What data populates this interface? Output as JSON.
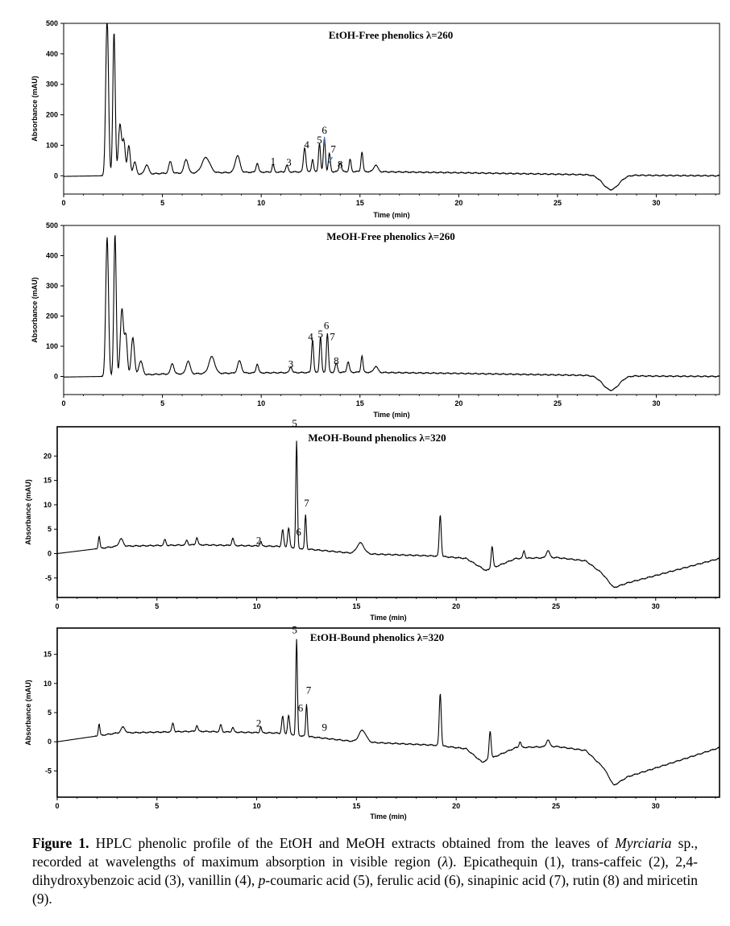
{
  "chart_data": [
    {
      "type": "line",
      "title": "EtOH-Free phenolics λ=260",
      "xlabel": "Time (min)",
      "ylabel": "Absorbance (mAU)",
      "xlim": [
        0,
        33.2
      ],
      "ylim": [
        -60,
        500
      ],
      "xticks": [
        0,
        5,
        10,
        15,
        20,
        25,
        30
      ],
      "yticks": [
        0,
        100,
        200,
        300,
        400,
        500
      ],
      "baseline": {
        "x": [
          0,
          2,
          5,
          10,
          15,
          20,
          26,
          30,
          33.2
        ],
        "y": [
          -2,
          0,
          8,
          12,
          14,
          10,
          4,
          1,
          0
        ]
      },
      "peaks": [
        {
          "x": 2.2,
          "y": 520,
          "w": 0.07
        },
        {
          "x": 2.55,
          "y": 470,
          "w": 0.06
        },
        {
          "x": 2.85,
          "y": 165,
          "w": 0.08
        },
        {
          "x": 3.05,
          "y": 110,
          "w": 0.07
        },
        {
          "x": 3.3,
          "y": 95,
          "w": 0.07
        },
        {
          "x": 3.6,
          "y": 40,
          "w": 0.08
        },
        {
          "x": 4.2,
          "y": 30,
          "w": 0.1
        },
        {
          "x": 5.4,
          "y": 38,
          "w": 0.08
        },
        {
          "x": 6.2,
          "y": 45,
          "w": 0.1
        },
        {
          "x": 7.2,
          "y": 50,
          "w": 0.2
        },
        {
          "x": 8.8,
          "y": 55,
          "w": 0.12
        },
        {
          "x": 9.8,
          "y": 30,
          "w": 0.06
        },
        {
          "x": 10.6,
          "y": 25,
          "w": 0.05
        },
        {
          "x": 11.3,
          "y": 22,
          "w": 0.06
        },
        {
          "x": 12.2,
          "y": 80,
          "w": 0.06
        },
        {
          "x": 12.6,
          "y": 42,
          "w": 0.05
        },
        {
          "x": 12.95,
          "y": 95,
          "w": 0.05
        },
        {
          "x": 13.2,
          "y": 110,
          "w": 0.05
        },
        {
          "x": 13.45,
          "y": 60,
          "w": 0.05
        },
        {
          "x": 14.0,
          "y": 30,
          "w": 0.06
        },
        {
          "x": 14.5,
          "y": 40,
          "w": 0.05
        },
        {
          "x": 15.1,
          "y": 65,
          "w": 0.05
        },
        {
          "x": 15.8,
          "y": 22,
          "w": 0.1
        },
        {
          "x": 27.7,
          "y": -48,
          "w": 0.4
        }
      ],
      "peak_labels": [
        {
          "label": "1",
          "x": 10.6,
          "y": 28
        },
        {
          "label": "3",
          "x": 11.4,
          "y": 25
        },
        {
          "label": "4",
          "x": 12.3,
          "y": 82
        },
        {
          "label": "5",
          "x": 12.95,
          "y": 98
        },
        {
          "label": "6",
          "x": 13.2,
          "y": 130
        },
        {
          "label": "7",
          "x": 13.65,
          "y": 68
        },
        {
          "label": "8",
          "x": 14.0,
          "y": 18
        }
      ]
    },
    {
      "type": "line",
      "title": "MeOH-Free phenolics λ=260",
      "xlabel": "Time (min)",
      "ylabel": "Absorbance (mAU)",
      "xlim": [
        0,
        33.2
      ],
      "ylim": [
        -60,
        500
      ],
      "xticks": [
        0,
        5,
        10,
        15,
        20,
        25,
        30
      ],
      "yticks": [
        0,
        100,
        200,
        300,
        400,
        500
      ],
      "baseline": {
        "x": [
          0,
          2,
          5,
          10,
          15,
          20,
          26,
          30,
          33.2
        ],
        "y": [
          -2,
          0,
          8,
          12,
          14,
          10,
          4,
          1,
          0
        ]
      },
      "peaks": [
        {
          "x": 2.2,
          "y": 460,
          "w": 0.07
        },
        {
          "x": 2.6,
          "y": 470,
          "w": 0.06
        },
        {
          "x": 2.95,
          "y": 220,
          "w": 0.08
        },
        {
          "x": 3.15,
          "y": 130,
          "w": 0.07
        },
        {
          "x": 3.5,
          "y": 125,
          "w": 0.08
        },
        {
          "x": 3.9,
          "y": 45,
          "w": 0.1
        },
        {
          "x": 5.5,
          "y": 35,
          "w": 0.08
        },
        {
          "x": 6.3,
          "y": 42,
          "w": 0.1
        },
        {
          "x": 7.5,
          "y": 55,
          "w": 0.15
        },
        {
          "x": 8.9,
          "y": 40,
          "w": 0.1
        },
        {
          "x": 9.8,
          "y": 30,
          "w": 0.06
        },
        {
          "x": 11.5,
          "y": 20,
          "w": 0.06
        },
        {
          "x": 12.6,
          "y": 110,
          "w": 0.05
        },
        {
          "x": 13.0,
          "y": 120,
          "w": 0.05
        },
        {
          "x": 13.35,
          "y": 130,
          "w": 0.05
        },
        {
          "x": 13.8,
          "y": 30,
          "w": 0.06
        },
        {
          "x": 14.4,
          "y": 35,
          "w": 0.06
        },
        {
          "x": 15.1,
          "y": 55,
          "w": 0.05
        },
        {
          "x": 15.8,
          "y": 20,
          "w": 0.1
        },
        {
          "x": 27.7,
          "y": -48,
          "w": 0.4
        }
      ],
      "peak_labels": [
        {
          "label": "3",
          "x": 11.5,
          "y": 22
        },
        {
          "label": "4",
          "x": 12.5,
          "y": 112
        },
        {
          "label": "5",
          "x": 13.0,
          "y": 122
        },
        {
          "label": "6",
          "x": 13.3,
          "y": 150
        },
        {
          "label": "7",
          "x": 13.6,
          "y": 112
        },
        {
          "label": "8",
          "x": 13.8,
          "y": 32
        }
      ]
    },
    {
      "type": "line",
      "title": "MeOH-Bound phenolics λ=320",
      "xlabel": "Time (min)",
      "ylabel": "Absorbance (mAU)",
      "xlim": [
        0,
        33.2
      ],
      "ylim": [
        -9,
        26
      ],
      "xticks": [
        0,
        5,
        10,
        15,
        20,
        25,
        30
      ],
      "yticks": [
        -5,
        0,
        5,
        10,
        15,
        20
      ],
      "baseline": {
        "x": [
          0,
          3,
          7,
          11,
          15,
          19,
          20.5,
          21.5,
          23,
          25,
          26.5,
          27.3,
          27.9,
          28.6,
          30,
          33.2
        ],
        "y": [
          0,
          1.5,
          1.8,
          1.5,
          0,
          -0.5,
          -1,
          -3.5,
          -1,
          -0.8,
          -1.5,
          -4,
          -7,
          -6,
          -4.5,
          -1
        ]
      },
      "peaks": [
        {
          "x": 2.1,
          "y": 2.5,
          "w": 0.04
        },
        {
          "x": 3.2,
          "y": 1.5,
          "w": 0.1
        },
        {
          "x": 5.4,
          "y": 1.2,
          "w": 0.05
        },
        {
          "x": 6.5,
          "y": 1.0,
          "w": 0.05
        },
        {
          "x": 7.0,
          "y": 1.5,
          "w": 0.05
        },
        {
          "x": 8.8,
          "y": 1.5,
          "w": 0.05
        },
        {
          "x": 10.2,
          "y": 1.0,
          "w": 0.04
        },
        {
          "x": 11.3,
          "y": 3.5,
          "w": 0.05
        },
        {
          "x": 11.6,
          "y": 4.0,
          "w": 0.05
        },
        {
          "x": 12.0,
          "y": 22,
          "w": 0.04
        },
        {
          "x": 12.45,
          "y": 7,
          "w": 0.04
        },
        {
          "x": 15.2,
          "y": 2.2,
          "w": 0.18
        },
        {
          "x": 19.2,
          "y": 8.5,
          "w": 0.05
        },
        {
          "x": 21.8,
          "y": 4.5,
          "w": 0.05
        },
        {
          "x": 23.4,
          "y": 1.5,
          "w": 0.05
        },
        {
          "x": 24.6,
          "y": 1.5,
          "w": 0.08
        }
      ],
      "peak_labels": [
        {
          "label": "2",
          "x": 10.1,
          "y": 1.5
        },
        {
          "label": "5",
          "x": 11.9,
          "y": 25.5
        },
        {
          "label": "6",
          "x": 12.1,
          "y": 3.2
        },
        {
          "label": "7",
          "x": 12.5,
          "y": 9.2
        }
      ]
    },
    {
      "type": "line",
      "title": "EtOH-Bound phenolics λ=320",
      "xlabel": "Time (min)",
      "ylabel": "Absorbance (mAU)",
      "xlim": [
        0,
        33.2
      ],
      "ylim": [
        -9.5,
        19.5
      ],
      "xticks": [
        0,
        5,
        10,
        15,
        20,
        25,
        30
      ],
      "yticks": [
        -5,
        0,
        5,
        10,
        15
      ],
      "baseline": {
        "x": [
          0,
          3,
          7,
          11,
          15,
          19,
          20.5,
          21.3,
          23,
          25,
          26.5,
          27.4,
          27.9,
          28.6,
          30,
          33.2
        ],
        "y": [
          0,
          1.5,
          1.8,
          1.5,
          0,
          -0.6,
          -1.2,
          -3.5,
          -1,
          -0.8,
          -1.5,
          -4.5,
          -7.5,
          -6,
          -4.5,
          -1
        ]
      },
      "peaks": [
        {
          "x": 2.1,
          "y": 2.0,
          "w": 0.04
        },
        {
          "x": 3.3,
          "y": 1.0,
          "w": 0.1
        },
        {
          "x": 5.8,
          "y": 1.5,
          "w": 0.05
        },
        {
          "x": 7.0,
          "y": 1.0,
          "w": 0.05
        },
        {
          "x": 8.2,
          "y": 1.2,
          "w": 0.05
        },
        {
          "x": 8.8,
          "y": 0.8,
          "w": 0.05
        },
        {
          "x": 10.2,
          "y": 1.0,
          "w": 0.04
        },
        {
          "x": 11.3,
          "y": 3.0,
          "w": 0.05
        },
        {
          "x": 11.6,
          "y": 3.3,
          "w": 0.05
        },
        {
          "x": 12.0,
          "y": 16.5,
          "w": 0.04
        },
        {
          "x": 12.5,
          "y": 5.5,
          "w": 0.04
        },
        {
          "x": 15.3,
          "y": 2.0,
          "w": 0.18
        },
        {
          "x": 19.2,
          "y": 9.0,
          "w": 0.05
        },
        {
          "x": 21.7,
          "y": 4.8,
          "w": 0.05
        },
        {
          "x": 23.2,
          "y": 1.0,
          "w": 0.05
        },
        {
          "x": 24.6,
          "y": 1.2,
          "w": 0.08
        }
      ],
      "peak_labels": [
        {
          "label": "2",
          "x": 10.1,
          "y": 2.2
        },
        {
          "label": "5",
          "x": 11.9,
          "y": 18.2
        },
        {
          "label": "6",
          "x": 12.2,
          "y": 4.8
        },
        {
          "label": "7",
          "x": 12.6,
          "y": 7.8
        },
        {
          "label": "9",
          "x": 13.4,
          "y": 1.5
        }
      ]
    }
  ],
  "caption": {
    "label": "Figure 1.",
    "text_1": " HPLC phenolic profile of the EtOH and MeOH extracts obtained from the leaves of ",
    "genus": "Myrciaria",
    "text_2": " sp., recorded at wavelengths of maximum absorption in visible region (",
    "lambda": "λ",
    "text_3": "). Epicathequin (1), trans-caffeic (2), 2,4-dihydroxybenzoic acid (3), vanillin (4), ",
    "p": "p",
    "text_4": "-coumaric acid (5), ferulic acid (6), sinapinic acid (7), rutin (8) and miricetin (9)."
  }
}
